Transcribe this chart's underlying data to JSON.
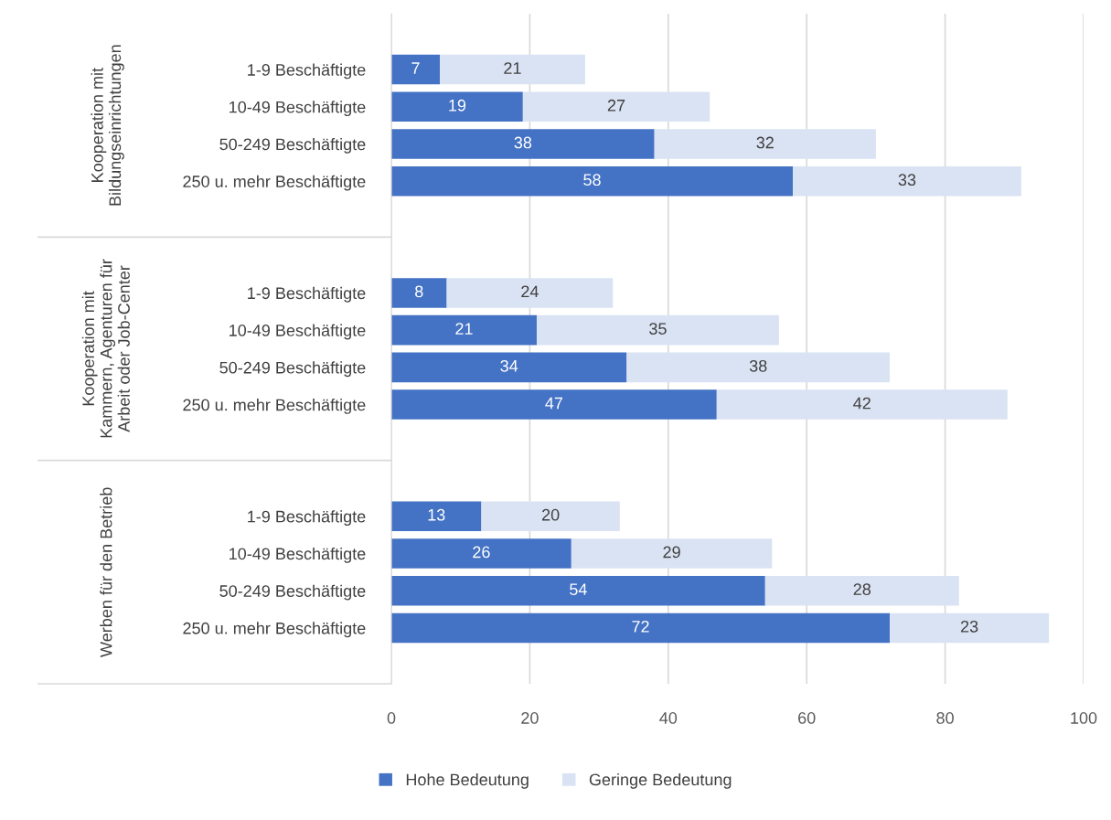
{
  "chart_data": {
    "type": "bar",
    "orientation": "horizontal",
    "stacked": true,
    "categories": [
      "1-9 Beschäftigte",
      "10-49 Beschäftigte",
      "50-249 Beschäftigte",
      "250 u. mehr Beschäftigte",
      "1-9 Beschäftigte",
      "10-49 Beschäftigte",
      "50-249 Beschäftigte",
      "250 u. mehr Beschäftigte",
      "1-9 Beschäftigte",
      "10-49 Beschäftigte",
      "50-249 Beschäftigte",
      "250 u. mehr Beschäftigte"
    ],
    "annotations": [
      "Kooperation mit\nBildungseinrichtungen",
      "Kooperation mit\nKammern, Agenturen für\nArbeit oder Job-Center",
      "Werben für den Betrieb"
    ],
    "series": [
      {
        "name": "Hohe Bedeutung",
        "color": "#4472c4",
        "values": [
          7,
          19,
          38,
          58,
          8,
          21,
          34,
          47,
          13,
          26,
          54,
          72
        ]
      },
      {
        "name": "Geringe Bedeutung",
        "color": "#dae3f3",
        "values": [
          21,
          27,
          32,
          33,
          24,
          35,
          38,
          42,
          20,
          29,
          28,
          23
        ]
      }
    ],
    "xlim": [
      0,
      100
    ],
    "xticks": [
      0,
      20,
      40,
      60,
      80,
      100
    ],
    "grid": "x",
    "legend": "bottom",
    "data_labels": true
  }
}
